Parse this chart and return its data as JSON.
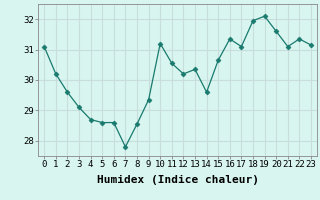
{
  "xlabel": "Humidex (Indice chaleur)",
  "x": [
    0,
    1,
    2,
    3,
    4,
    5,
    6,
    7,
    8,
    9,
    10,
    11,
    12,
    13,
    14,
    15,
    16,
    17,
    18,
    19,
    20,
    21,
    22,
    23
  ],
  "y": [
    31.1,
    30.2,
    29.6,
    29.1,
    28.7,
    28.6,
    28.6,
    27.8,
    28.55,
    29.35,
    31.2,
    30.55,
    30.2,
    30.35,
    29.6,
    30.65,
    31.35,
    31.1,
    31.95,
    32.1,
    31.6,
    31.1,
    31.35,
    31.15
  ],
  "line_color": "#1a7a6e",
  "marker": "D",
  "marker_size": 2.5,
  "bg_color": "#d8f5f0",
  "grid_color": "#c8dedd",
  "ylim": [
    27.5,
    32.5
  ],
  "yticks": [
    28,
    29,
    30,
    31,
    32
  ],
  "xtick_labels": [
    "0",
    "1",
    "2",
    "3",
    "4",
    "5",
    "6",
    "7",
    "8",
    "9",
    "10",
    "11",
    "12",
    "13",
    "14",
    "15",
    "16",
    "17",
    "18",
    "19",
    "20",
    "21",
    "22",
    "23"
  ],
  "tick_fontsize": 6.5,
  "xlabel_fontsize": 8,
  "spine_color": "#888888"
}
